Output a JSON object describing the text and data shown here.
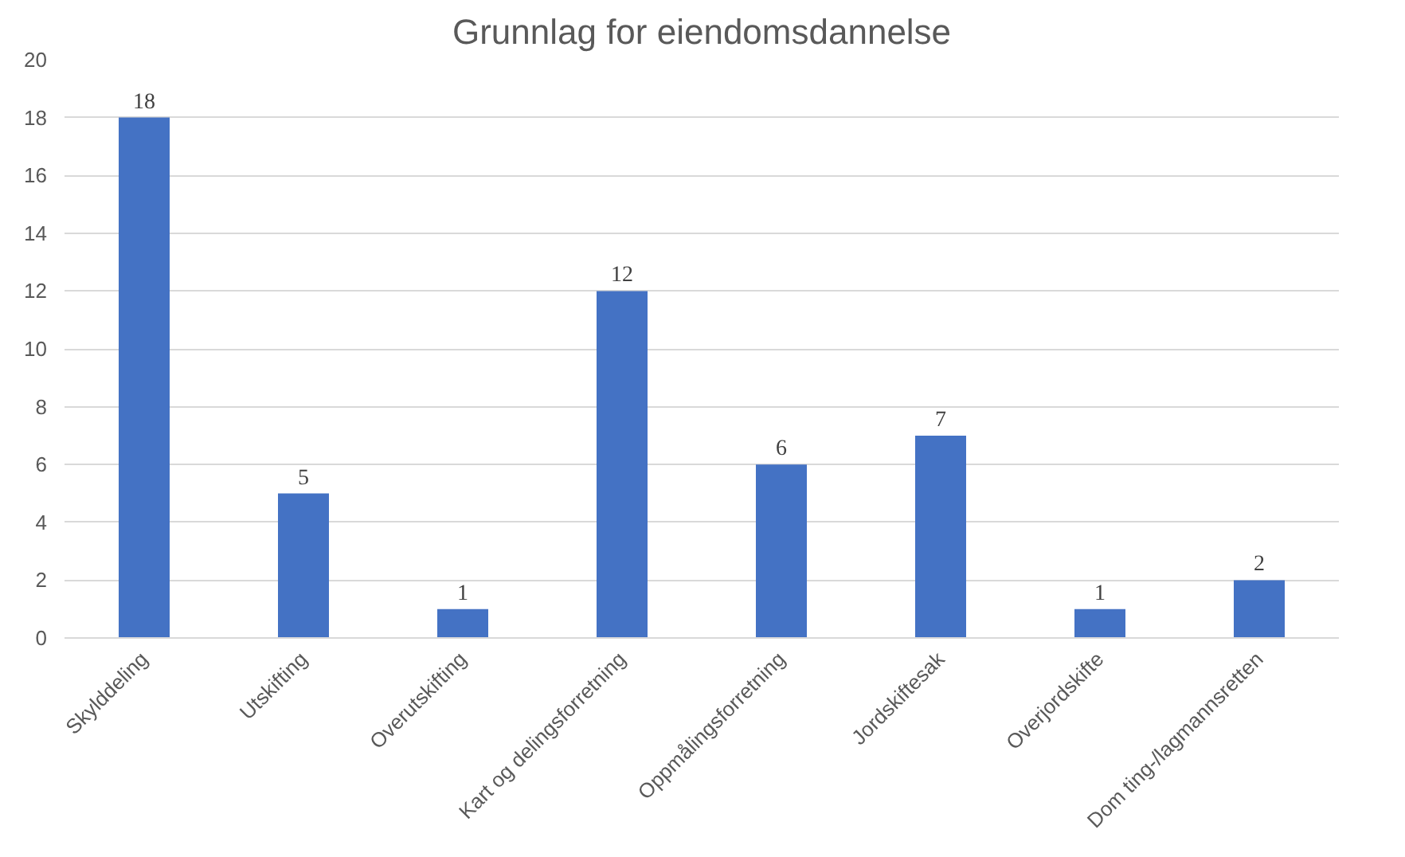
{
  "chart_data": {
    "type": "bar",
    "title": "Grunnlag for eiendomsdannelse",
    "categories": [
      "Skylddeling",
      "Utskifting",
      "Overutskifting",
      "Kart og delingsforretning",
      "Oppmålingsforretning",
      "Jordskiftesak",
      "Overjordskifte",
      "Dom ting-/lagmannsretten"
    ],
    "values": [
      18,
      5,
      1,
      12,
      6,
      7,
      1,
      2
    ],
    "color": "#4472c4",
    "ylim": [
      0,
      20
    ],
    "yticks": [
      0,
      2,
      4,
      6,
      8,
      10,
      12,
      14,
      16,
      18,
      20
    ],
    "grid": "y",
    "data_labels": true
  }
}
